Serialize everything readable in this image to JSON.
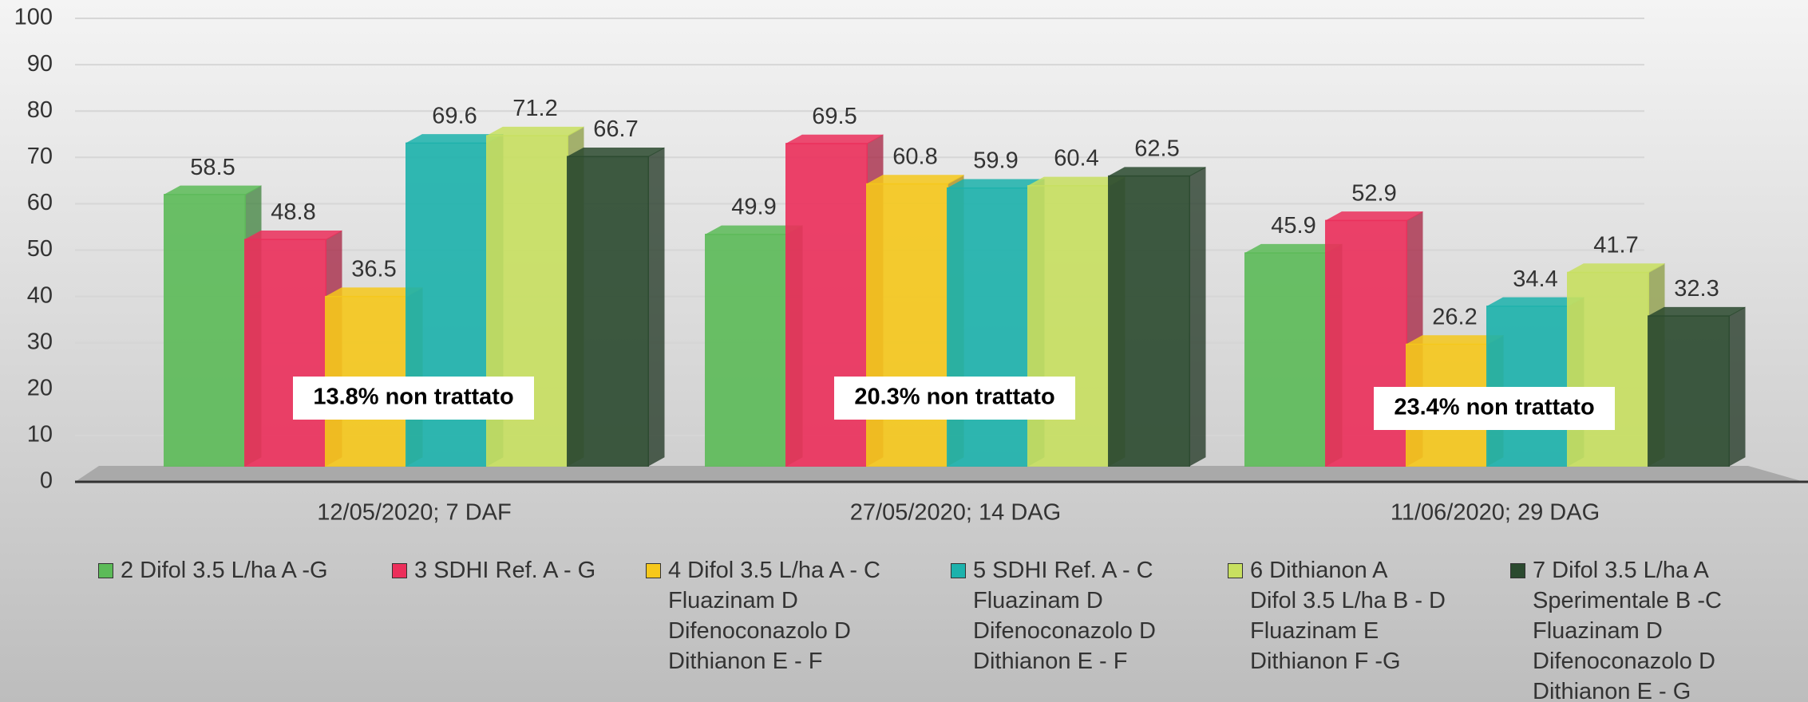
{
  "chart_data": {
    "type": "bar3d",
    "categories": [
      "12/05/2020; 7 DAF",
      "27/05/2020; 14 DAG",
      "11/06/2020; 29 DAG"
    ],
    "series": [
      {
        "name": "2 Difol 3.5 L/ha A -G",
        "color": "#5cbb58",
        "values": [
          58.5,
          49.9,
          45.9
        ]
      },
      {
        "name": "3 SDHI Ref. A - G",
        "color": "#ec2f5b",
        "values": [
          48.8,
          69.5,
          52.9
        ]
      },
      {
        "name": "4 Difol 3.5 L/ha A - C\nFluazinam D\nDifenoconazolo D\nDithianon E - F",
        "color": "#f6c81b",
        "values": [
          36.5,
          60.8,
          26.2
        ]
      },
      {
        "name": "5 SDHI Ref. A - C\nFluazinam D\nDifenoconazolo D\nDithianon E - F",
        "color": "#1cb2ac",
        "values": [
          69.6,
          59.9,
          34.4
        ]
      },
      {
        "name": "6 Dithianon A\nDifol 3.5 L/ha B - D\nFluazinam E\nDithianon F -G",
        "color": "#c8e060",
        "values": [
          71.2,
          60.4,
          41.7
        ]
      },
      {
        "name": "7 Difol 3.5 L/ha A\nSperimentale B -C\nFluazinam D\nDifenoconazolo D\nDithianon E - G",
        "color": "#2b4a2f",
        "values": [
          66.7,
          62.5,
          32.3
        ]
      }
    ],
    "annotations": [
      "13.8% non trattato",
      "20.3% non trattato",
      "23.4% non trattato"
    ],
    "ylim": [
      0,
      100
    ],
    "yticks": [
      0,
      10,
      20,
      30,
      40,
      50,
      60,
      70,
      80,
      90,
      100
    ],
    "grid": true
  }
}
